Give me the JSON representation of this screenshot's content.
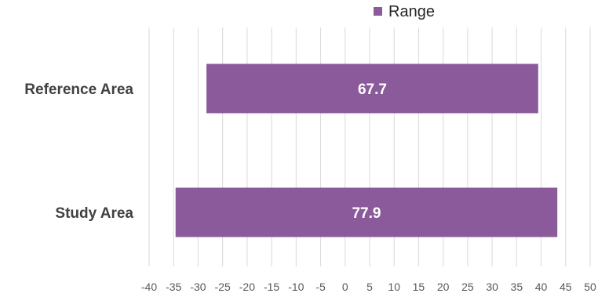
{
  "chart_data": {
    "type": "bar",
    "orientation": "horizontal",
    "categories": [
      "Reference Area",
      "Study Area"
    ],
    "series": [
      {
        "name": "Range",
        "color": "#8b5a9b",
        "ranges": [
          [
            -28.3,
            39.4
          ],
          [
            -34.6,
            43.3
          ]
        ],
        "values": [
          67.7,
          77.9
        ],
        "data_labels": [
          "67.7",
          "77.9"
        ]
      }
    ],
    "xlim": [
      -40,
      50
    ],
    "xticks": [
      -40,
      -35,
      -30,
      -25,
      -20,
      -15,
      -10,
      -5,
      0,
      5,
      10,
      15,
      20,
      25,
      30,
      35,
      40,
      45,
      50
    ],
    "grid": true,
    "legend_position": "top-center",
    "title": "",
    "xlabel": "",
    "ylabel": ""
  }
}
